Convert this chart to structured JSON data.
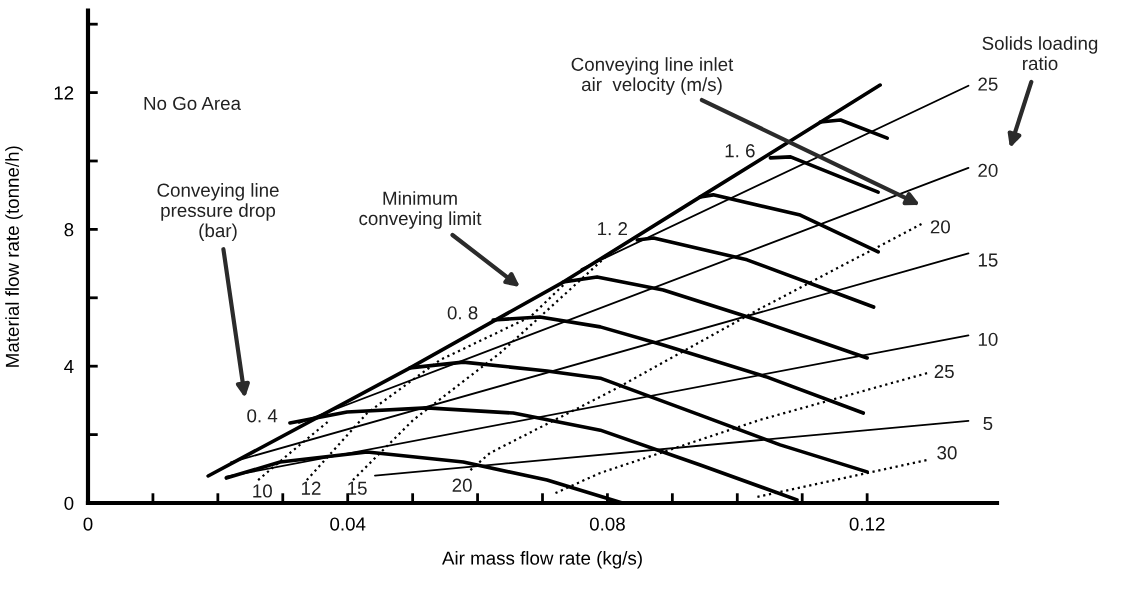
{
  "chart_data": {
    "type": "line",
    "xlabel": "Air mass flow rate (kg/s)",
    "ylabel": "Material flow rate (tonne/h)",
    "xlim": [
      0,
      0.14
    ],
    "ylim": [
      0,
      14.4
    ],
    "xticks": [
      0,
      {
        "value": 0.01,
        "label": null
      },
      {
        "value": 0.02,
        "label": null
      },
      {
        "value": 0.03,
        "label": null
      },
      0.04,
      {
        "value": 0.05,
        "label": null
      },
      {
        "value": 0.06,
        "label": null
      },
      {
        "value": 0.07,
        "label": null
      },
      0.08,
      {
        "value": 0.09,
        "label": null
      },
      {
        "value": 0.1,
        "label": null
      },
      {
        "value": 0.11,
        "label": null
      },
      0.12
    ],
    "yticks": [
      0,
      {
        "value": 2,
        "label": null
      },
      4,
      {
        "value": 6,
        "label": null
      },
      8,
      {
        "value": 10,
        "label": null
      },
      12,
      {
        "value": 14,
        "label": null
      }
    ],
    "series": [
      {
        "color": "#000000",
        "line_style": "solid",
        "x": [
          0.0185,
          0.0496,
          0.0732,
          0.0943,
          0.122
        ],
        "values": [
          0.79,
          3.95,
          6.46,
          8.95,
          12.22
        ]
      },
      {
        "color": "#000000",
        "line_style": "solid",
        "x": [
          0.0213,
          0.0296,
          0.043,
          0.0578,
          0.0707,
          0.0823
        ],
        "values": [
          0.73,
          1.2,
          1.49,
          1.2,
          0.67,
          0
        ]
      },
      {
        "name": "0. 4",
        "color": "#000000",
        "line_style": "solid",
        "x": [
          0.0311,
          0.0399,
          0.0522,
          0.0655,
          0.0789,
          0.0943,
          0.1092
        ],
        "values": [
          2.34,
          2.66,
          2.78,
          2.63,
          2.13,
          1.11,
          0.09
        ]
      },
      {
        "color": "#000000",
        "line_style": "solid",
        "x": [
          0.0496,
          0.0578,
          0.0707,
          0.0789,
          0.0943,
          0.1066,
          0.12
        ],
        "values": [
          3.95,
          4.12,
          3.86,
          3.65,
          2.57,
          1.7,
          0.91
        ]
      },
      {
        "name": "0. 8",
        "color": "#000000",
        "line_style": "solid",
        "x": [
          0.0624,
          0.0696,
          0.0789,
          0.0886,
          0.1046,
          0.1194
        ],
        "values": [
          5.35,
          5.44,
          5.15,
          4.62,
          3.68,
          2.63
        ]
      },
      {
        "color": "#000000",
        "line_style": "solid",
        "x": [
          0.0732,
          0.0784,
          0.0886,
          0.1031,
          0.12
        ],
        "values": [
          6.46,
          6.61,
          6.23,
          5.35,
          4.24
        ]
      },
      {
        "name": "1. 2",
        "color": "#000000",
        "line_style": "solid",
        "x": [
          0.0846,
          0.0871,
          0.1015,
          0.121
        ],
        "values": [
          7.69,
          7.75,
          7.11,
          5.73
        ]
      },
      {
        "color": "#000000",
        "line_style": "solid",
        "x": [
          0.0943,
          0.0963,
          0.1097,
          0.1217
        ],
        "values": [
          8.95,
          9.01,
          8.42,
          7.34
        ]
      },
      {
        "name": "1. 6",
        "color": "#000000",
        "line_style": "solid",
        "x": [
          0.1051,
          0.1082,
          0.1217
        ],
        "values": [
          10.09,
          10.12,
          9.09
        ]
      },
      {
        "color": "#000000",
        "line_style": "solid",
        "x": [
          0.1128,
          0.1159,
          0.1231
        ],
        "values": [
          11.14,
          11.2,
          10.67
        ]
      },
      {
        "name": "25",
        "color": "#000000",
        "line_style": "solid",
        "x": [
          0.076,
          0.1356
        ],
        "values": [
          6.84,
          12.2
        ]
      },
      {
        "name": "20",
        "color": "#000000",
        "line_style": "solid",
        "x": [
          0.0325,
          0.1356
        ],
        "values": [
          2.34,
          9.8
        ]
      },
      {
        "name": "15",
        "color": "#000000",
        "line_style": "solid",
        "x": [
          0.022,
          0.1356
        ],
        "values": [
          1.19,
          7.3
        ]
      },
      {
        "name": "10",
        "color": "#000000",
        "line_style": "solid",
        "x": [
          0.0213,
          0.1356
        ],
        "values": [
          0.77,
          4.9
        ]
      },
      {
        "name": "5",
        "color": "#000000",
        "line_style": "solid",
        "x": [
          0.0442,
          0.1356
        ],
        "values": [
          0.8,
          2.4
        ]
      },
      {
        "name": "10",
        "color": "#000000",
        "line_style": "dotted",
        "x": [
          0.0262,
          0.0311,
          0.0373
        ],
        "values": [
          0.67,
          1.46,
          2.43
        ]
      },
      {
        "name": "12",
        "color": "#000000",
        "line_style": "dotted",
        "x": [
          0.0337,
          0.043,
          0.0542,
          0.0681,
          0.0732
        ],
        "values": [
          0.67,
          2.63,
          4.18,
          5.44,
          6.37
        ]
      },
      {
        "name": "15",
        "color": "#000000",
        "line_style": "dotted",
        "x": [
          0.0408,
          0.0501,
          0.0635,
          0.0696,
          0.0804
        ],
        "values": [
          0.67,
          2.43,
          4.39,
          5.44,
          7.31
        ]
      },
      {
        "name": "20",
        "color": "#000000",
        "line_style": "dotted",
        "x": [
          0.0589,
          0.0619,
          0.0809,
          0.1031,
          0.1287
        ],
        "values": [
          0.96,
          1.46,
          3.3,
          5.64,
          8.19
        ]
      },
      {
        "name": "25",
        "color": "#000000",
        "line_style": "dotted",
        "x": [
          0.072,
          0.0789,
          0.1035,
          0.1293
        ],
        "values": [
          0.29,
          0.88,
          2.43,
          3.8
        ]
      },
      {
        "name": "30",
        "color": "#000000",
        "line_style": "dotted",
        "x": [
          0.1031,
          0.1293
        ],
        "values": [
          0.18,
          1.26
        ]
      }
    ],
    "annotations": [
      "No Go Area",
      "Minimum\nconveying limit",
      "Conveying line\npressure drop\n(bar)",
      "Conveying line inlet\nair  velocity (m/s)",
      "Solids loading\nratio"
    ]
  }
}
